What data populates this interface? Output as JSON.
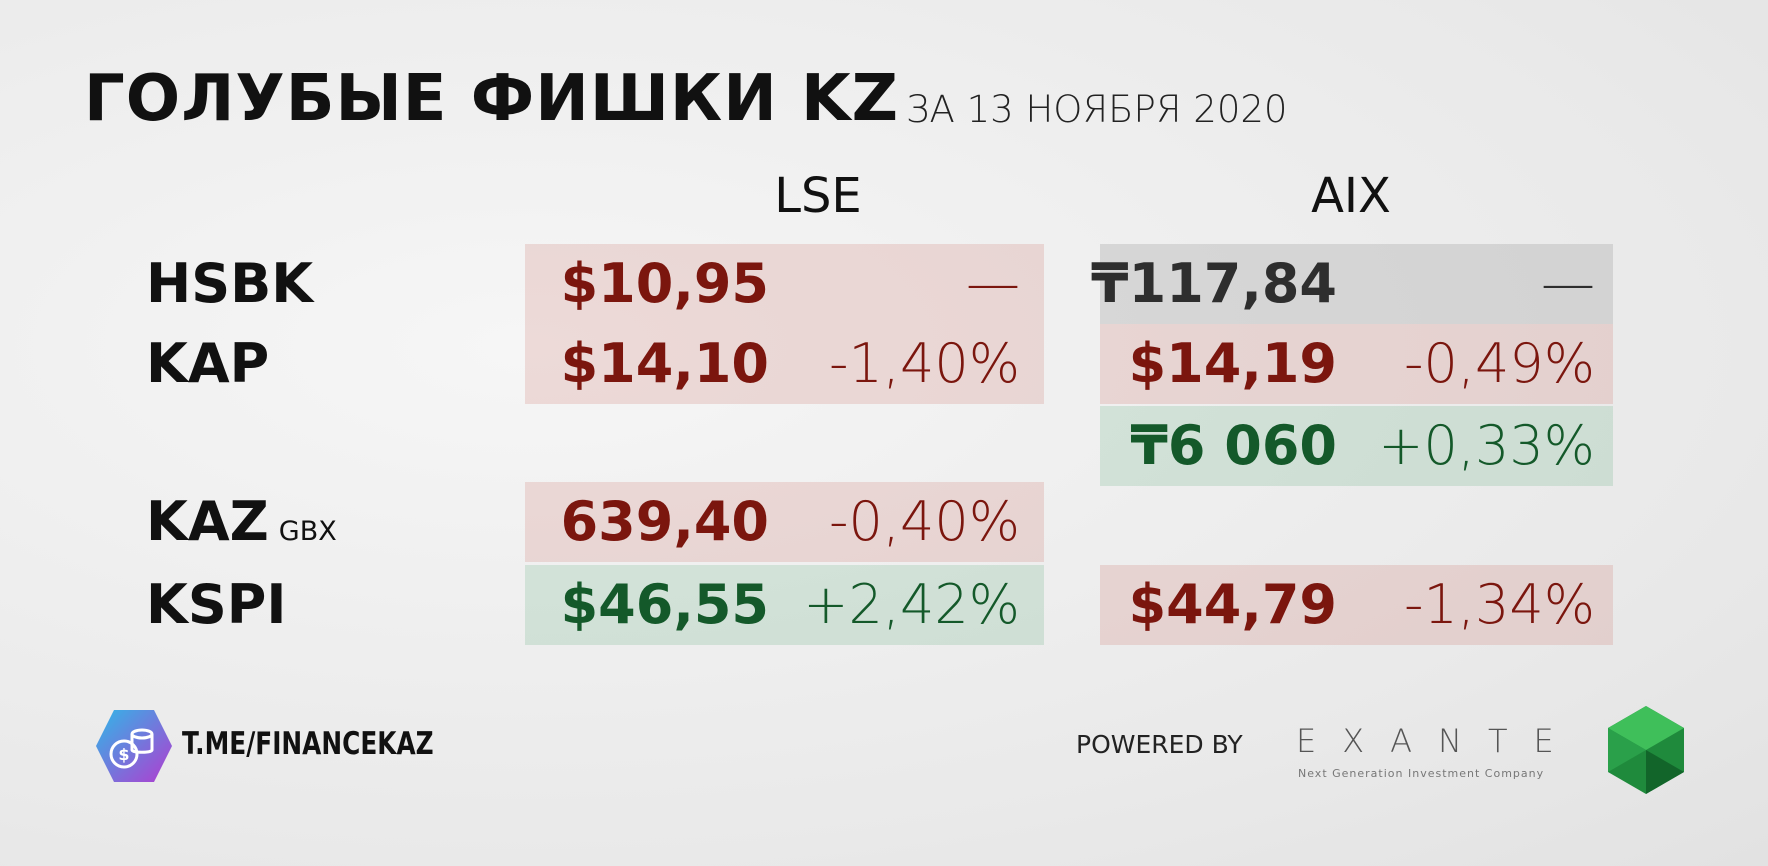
{
  "header": {
    "title": "ГОЛУБЫЕ ФИШКИ KZ",
    "subtitle": "ЗА 13 НОЯБРЯ 2020"
  },
  "table": {
    "columns": [
      "LSE",
      "AIX"
    ],
    "rows": [
      {
        "ticker": "HSBK",
        "lse": {
          "price": "$10,95",
          "change": "—",
          "tone": "neg"
        },
        "aix": {
          "price": "₸117,84",
          "change": "—",
          "tone": "flat"
        }
      },
      {
        "ticker": "KAP",
        "lse": {
          "price": "$14,10",
          "change": "-1,40%",
          "tone": "neg"
        },
        "aix": {
          "price": "$14,19",
          "change": "-0,49%",
          "tone": "neg"
        }
      },
      {
        "aix": {
          "price": "₸6 060",
          "change": "+0,33%",
          "tone": "pos"
        }
      },
      {
        "ticker": "KAZ",
        "unit": "GBX",
        "lse": {
          "price": "639,40",
          "change": "-0,40%",
          "tone": "neg"
        }
      },
      {
        "ticker": "KSPI",
        "lse": {
          "price": "$46,55",
          "change": "+2,42%",
          "tone": "pos"
        },
        "aix": {
          "price": "$44,79",
          "change": "-1,34%",
          "tone": "neg"
        }
      }
    ]
  },
  "footer": {
    "channel": "T.ME/FINANCEKAZ",
    "powered": "POWERED BY",
    "brand": "EXANTE",
    "tagline": "Next Generation Investment Company"
  }
}
